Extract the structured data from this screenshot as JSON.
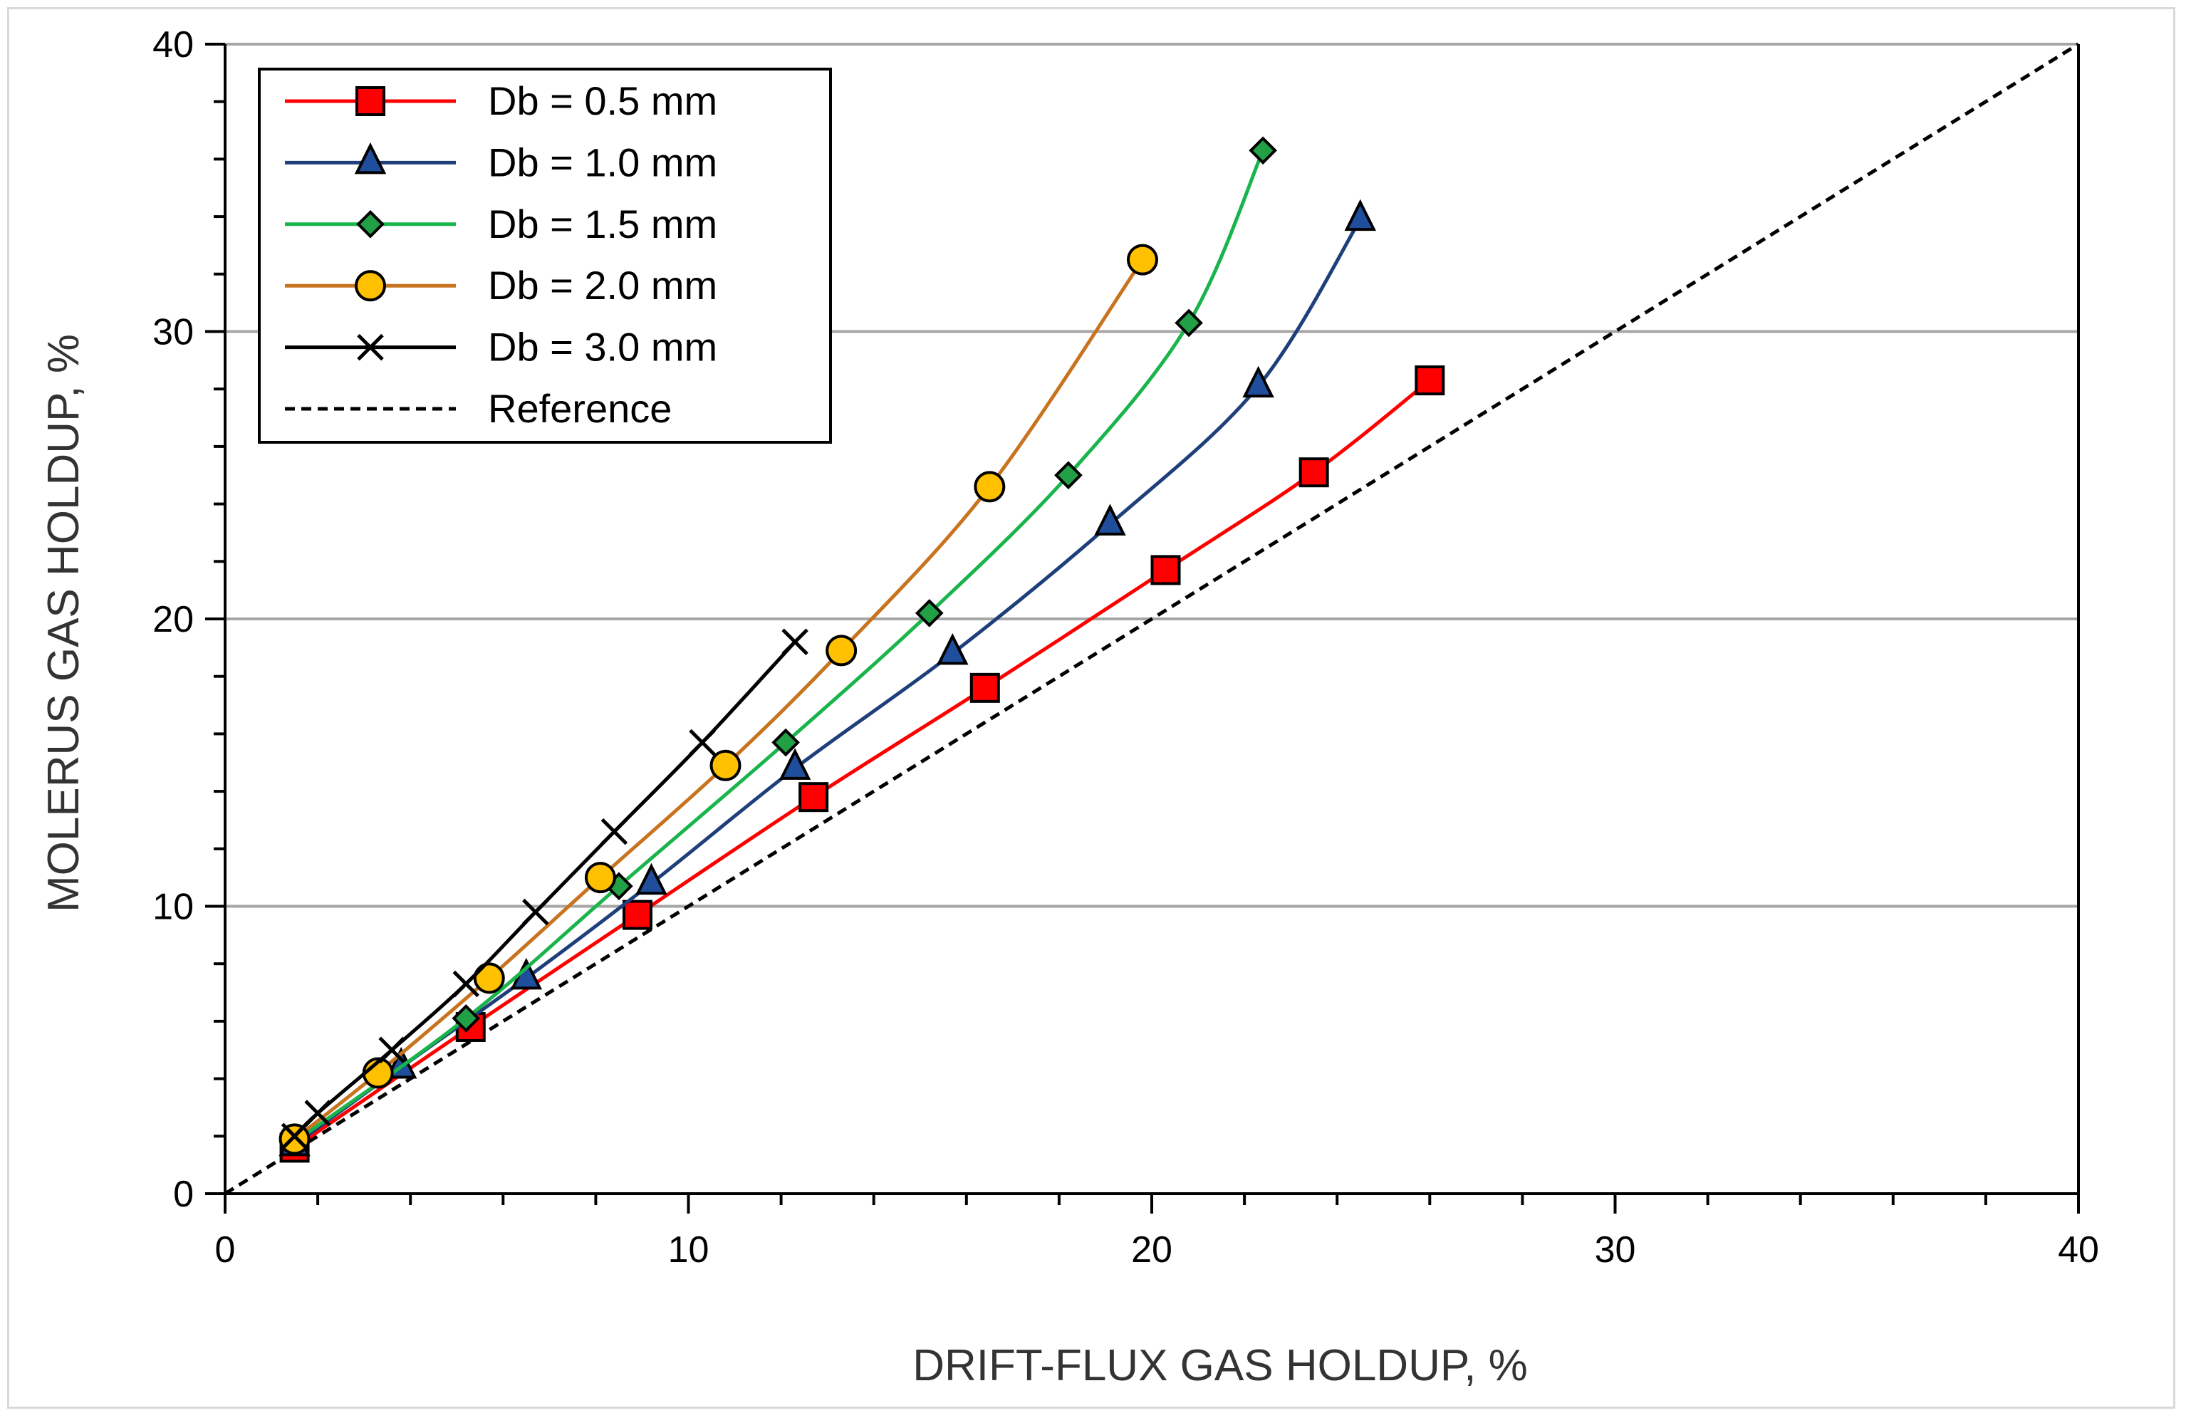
{
  "chart_data": {
    "type": "line",
    "title": "",
    "xlabel": "DRIFT-FLUX GAS HOLDUP, %",
    "ylabel": "MOLERUS GAS HOLDUP, %",
    "xlim": [
      0,
      40
    ],
    "ylim": [
      0,
      40
    ],
    "x_ticks": [
      "0",
      "10",
      "20",
      "30",
      "40"
    ],
    "y_ticks": [
      "0",
      "10",
      "20",
      "30",
      "40"
    ],
    "grid": "horizontal major gridlines",
    "legend_position": "top-left",
    "series": [
      {
        "name": "Db = 0.5 mm",
        "color": "#ff0000",
        "marker": "square",
        "marker_fill": "#ff0000",
        "x": [
          1.5,
          5.3,
          8.9,
          12.7,
          16.4,
          20.3,
          23.5,
          26.0
        ],
        "y": [
          1.6,
          5.8,
          9.7,
          13.8,
          17.6,
          21.7,
          25.1,
          28.3
        ]
      },
      {
        "name": "Db = 1.0 mm",
        "color": "#1f3f7a",
        "marker": "triangle",
        "marker_fill": "#1f4e9c",
        "x": [
          1.5,
          3.8,
          6.5,
          9.2,
          12.3,
          15.7,
          19.1,
          22.3,
          24.5
        ],
        "y": [
          1.7,
          4.4,
          7.5,
          10.8,
          14.8,
          18.8,
          23.3,
          28.1,
          33.9
        ]
      },
      {
        "name": "Db = 1.5 mm",
        "color": "#19b44b",
        "marker": "diamond",
        "marker_fill": "#22a046",
        "x": [
          1.5,
          5.2,
          8.5,
          12.1,
          15.2,
          18.2,
          20.8,
          22.4
        ],
        "y": [
          1.8,
          6.1,
          10.7,
          15.7,
          20.2,
          25.0,
          30.3,
          36.3
        ]
      },
      {
        "name": "Db = 2.0 mm",
        "color": "#c8731e",
        "marker": "circle",
        "marker_fill": "#ffc000",
        "x": [
          1.5,
          3.3,
          5.7,
          8.1,
          10.8,
          13.3,
          16.5,
          19.8
        ],
        "y": [
          1.9,
          4.2,
          7.5,
          11.0,
          14.9,
          18.9,
          24.6,
          32.5
        ]
      },
      {
        "name": "Db = 3.0 mm",
        "color": "#000000",
        "marker": "x",
        "marker_fill": "#000000",
        "x": [
          1.5,
          2.0,
          3.6,
          5.2,
          6.7,
          8.4,
          10.3,
          12.3
        ],
        "y": [
          2.0,
          2.8,
          5.0,
          7.3,
          9.8,
          12.6,
          15.7,
          19.2
        ]
      },
      {
        "name": "Reference",
        "color": "#000000",
        "marker": "none",
        "dashed": true,
        "x": [
          0,
          40
        ],
        "y": [
          0,
          40
        ]
      }
    ]
  }
}
